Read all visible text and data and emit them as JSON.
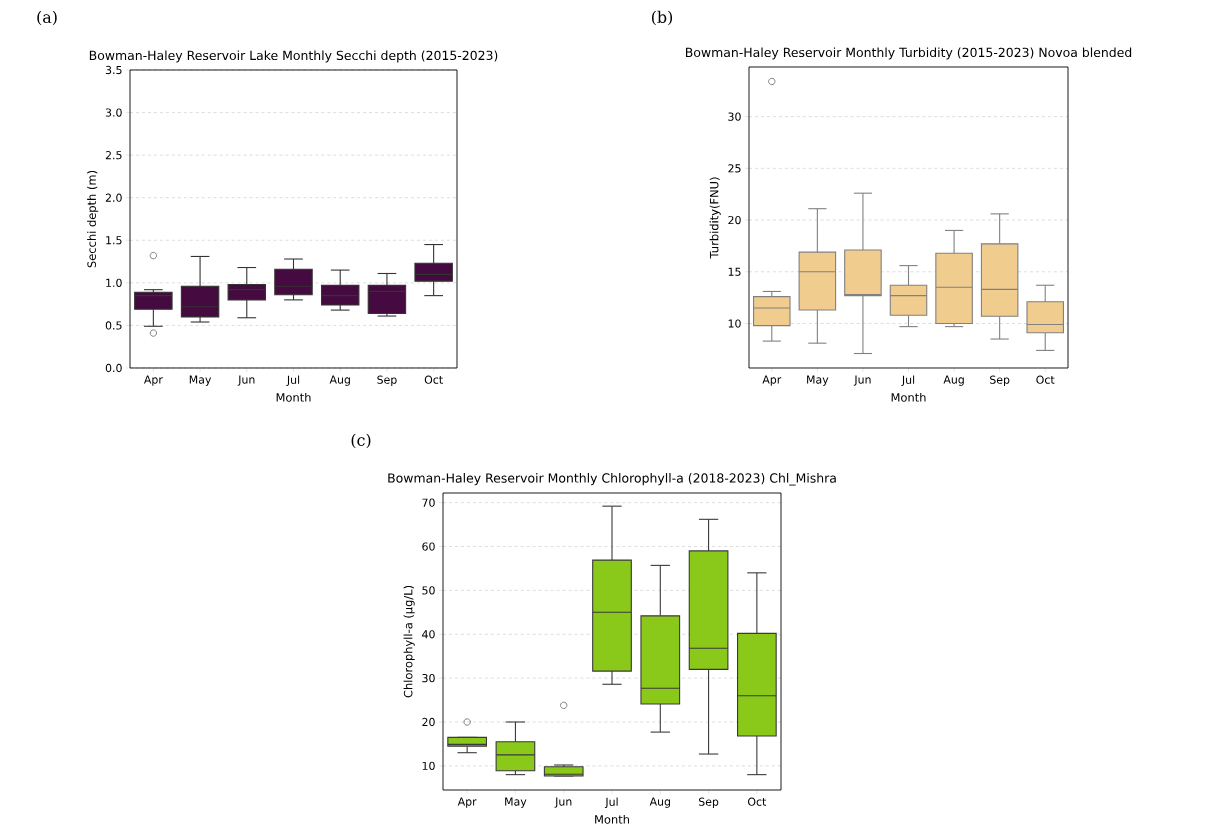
{
  "chart_data": [
    {
      "type": "box",
      "title": "Bowman-Haley Reservoir Lake Monthly Secchi depth (2015-2023)",
      "xlabel": "Month",
      "ylabel": "Secchi depth (m)",
      "annotations": [
        "(a)"
      ],
      "categories": [
        "Apr",
        "May",
        "Jun",
        "Jul",
        "Aug",
        "Sep",
        "Oct"
      ],
      "color": "#450a3f",
      "ylim": [
        0.0,
        3.5
      ],
      "yticks": [
        {
          "value": 0,
          "label": "0.0"
        },
        0.5,
        {
          "value": 1,
          "label": "1.0"
        },
        1.5,
        {
          "value": 2,
          "label": "2.0"
        },
        2.5,
        {
          "value": 3,
          "label": "3.0"
        },
        3.5
      ],
      "grid": "y",
      "boxes": [
        {
          "low": 0.49,
          "q1": 0.69,
          "median": 0.85,
          "q3": 0.89,
          "high": 0.92,
          "outliers": [
            1.32,
            0.41
          ]
        },
        {
          "low": 0.54,
          "q1": 0.6,
          "median": 0.72,
          "q3": 0.96,
          "high": 1.31
        },
        {
          "low": 0.59,
          "q1": 0.8,
          "median": 0.92,
          "q3": 0.98,
          "high": 1.18
        },
        {
          "low": 0.8,
          "q1": 0.86,
          "median": 0.96,
          "q3": 1.16,
          "high": 1.28
        },
        {
          "low": 0.68,
          "q1": 0.74,
          "median": 0.85,
          "q3": 0.97,
          "high": 1.15
        },
        {
          "low": 0.61,
          "q1": 0.64,
          "median": 0.9,
          "q3": 0.97,
          "high": 1.11
        },
        {
          "low": 0.85,
          "q1": 1.02,
          "median": 1.1,
          "q3": 1.23,
          "high": 1.45
        }
      ]
    },
    {
      "type": "box",
      "title": "Bowman-Haley Reservoir Monthly Turbidity (2015-2023) Novoa blended",
      "xlabel": "Month",
      "ylabel": "Turbidity(FNU)",
      "annotations": [
        "(b)"
      ],
      "categories": [
        "Apr",
        "May",
        "Jun",
        "Jul",
        "Aug",
        "Sep",
        "Oct"
      ],
      "color": "#f0cc8e",
      "ylim": [
        5.7,
        34.8
      ],
      "yticks": [
        10,
        15,
        20,
        25,
        30
      ],
      "grid": "y",
      "boxes": [
        {
          "low": 8.3,
          "q1": 9.8,
          "median": 11.5,
          "q3": 12.6,
          "high": 13.1,
          "outliers": [
            33.4
          ]
        },
        {
          "low": 8.1,
          "q1": 11.3,
          "median": 15.0,
          "q3": 16.9,
          "high": 21.1
        },
        {
          "low": 7.1,
          "q1": 12.7,
          "median": 12.8,
          "q3": 17.1,
          "high": 22.6
        },
        {
          "low": 9.7,
          "q1": 10.8,
          "median": 12.7,
          "q3": 13.7,
          "high": 15.6
        },
        {
          "low": 9.7,
          "q1": 10.0,
          "median": 13.5,
          "q3": 16.8,
          "high": 19.0
        },
        {
          "low": 8.5,
          "q1": 10.7,
          "median": 13.3,
          "q3": 17.7,
          "high": 20.6
        },
        {
          "low": 7.4,
          "q1": 9.1,
          "median": 9.9,
          "q3": 12.1,
          "high": 13.7
        }
      ]
    },
    {
      "type": "box",
      "title": "Bowman-Haley Reservoir Monthly Chlorophyll-a (2018-2023) Chl_Mishra",
      "xlabel": "Month",
      "ylabel": "Chlorophyll-a (µg/L)",
      "annotations": [
        "(c)"
      ],
      "categories": [
        "Apr",
        "May",
        "Jun",
        "Jul",
        "Aug",
        "Sep",
        "Oct"
      ],
      "color": "#8ac91a",
      "ylim": [
        4.5,
        72.2
      ],
      "yticks": [
        10,
        20,
        30,
        40,
        50,
        60,
        70
      ],
      "grid": "y",
      "boxes": [
        {
          "low": 13.0,
          "q1": 14.5,
          "median": 14.9,
          "q3": 16.5,
          "high": 16.5,
          "outliers": [
            20.0
          ]
        },
        {
          "low": 8.0,
          "q1": 8.9,
          "median": 12.5,
          "q3": 15.5,
          "high": 20.0
        },
        {
          "low": 7.7,
          "q1": 7.7,
          "median": 8.1,
          "q3": 9.8,
          "high": 10.2,
          "outliers": [
            23.8
          ]
        },
        {
          "low": 28.6,
          "q1": 31.6,
          "median": 45.0,
          "q3": 56.9,
          "high": 69.2
        },
        {
          "low": 17.7,
          "q1": 24.1,
          "median": 27.7,
          "q3": 44.2,
          "high": 55.7
        },
        {
          "low": 12.7,
          "q1": 32.0,
          "median": 36.8,
          "q3": 59.0,
          "high": 66.2
        },
        {
          "low": 8.0,
          "q1": 16.8,
          "median": 26.0,
          "q3": 40.2,
          "high": 54.0
        }
      ]
    }
  ]
}
